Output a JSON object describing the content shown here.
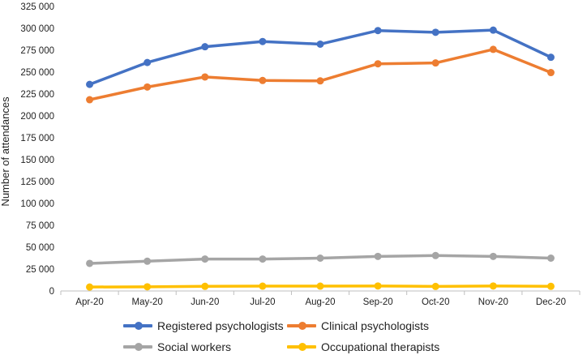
{
  "chart_data": {
    "type": "line",
    "ylabel": "Number of attendances",
    "xlabel": "",
    "categories": [
      "Apr-20",
      "May-20",
      "Jun-20",
      "Jul-20",
      "Aug-20",
      "Sep-20",
      "Oct-20",
      "Nov-20",
      "Dec-20"
    ],
    "ylim": [
      0,
      325000
    ],
    "ytick_step": 25000,
    "ytick_labels": [
      "0",
      "25 000",
      "50 000",
      "75 000",
      "100 000",
      "125 000",
      "150 000",
      "175 000",
      "200 000",
      "225 000",
      "250 000",
      "275 000",
      "300 000",
      "325 000"
    ],
    "grid": false,
    "legend_position": "bottom",
    "series": [
      {
        "name": "Registered psychologists",
        "color": "#4472C4",
        "values": [
          236000,
          261000,
          279000,
          285000,
          282000,
          297500,
          295500,
          298000,
          267000
        ]
      },
      {
        "name": "Clinical psychologists",
        "color": "#ED7D31",
        "values": [
          218500,
          233000,
          244500,
          240500,
          240000,
          259500,
          260500,
          276000,
          249500
        ]
      },
      {
        "name": "Social workers",
        "color": "#A5A5A5",
        "values": [
          31500,
          34000,
          36500,
          36500,
          37500,
          39500,
          40500,
          39500,
          37500
        ]
      },
      {
        "name": "Occupational therapists",
        "color": "#FFC000",
        "values": [
          4500,
          4800,
          5300,
          5500,
          5500,
          5700,
          5200,
          5700,
          5300
        ]
      }
    ]
  }
}
